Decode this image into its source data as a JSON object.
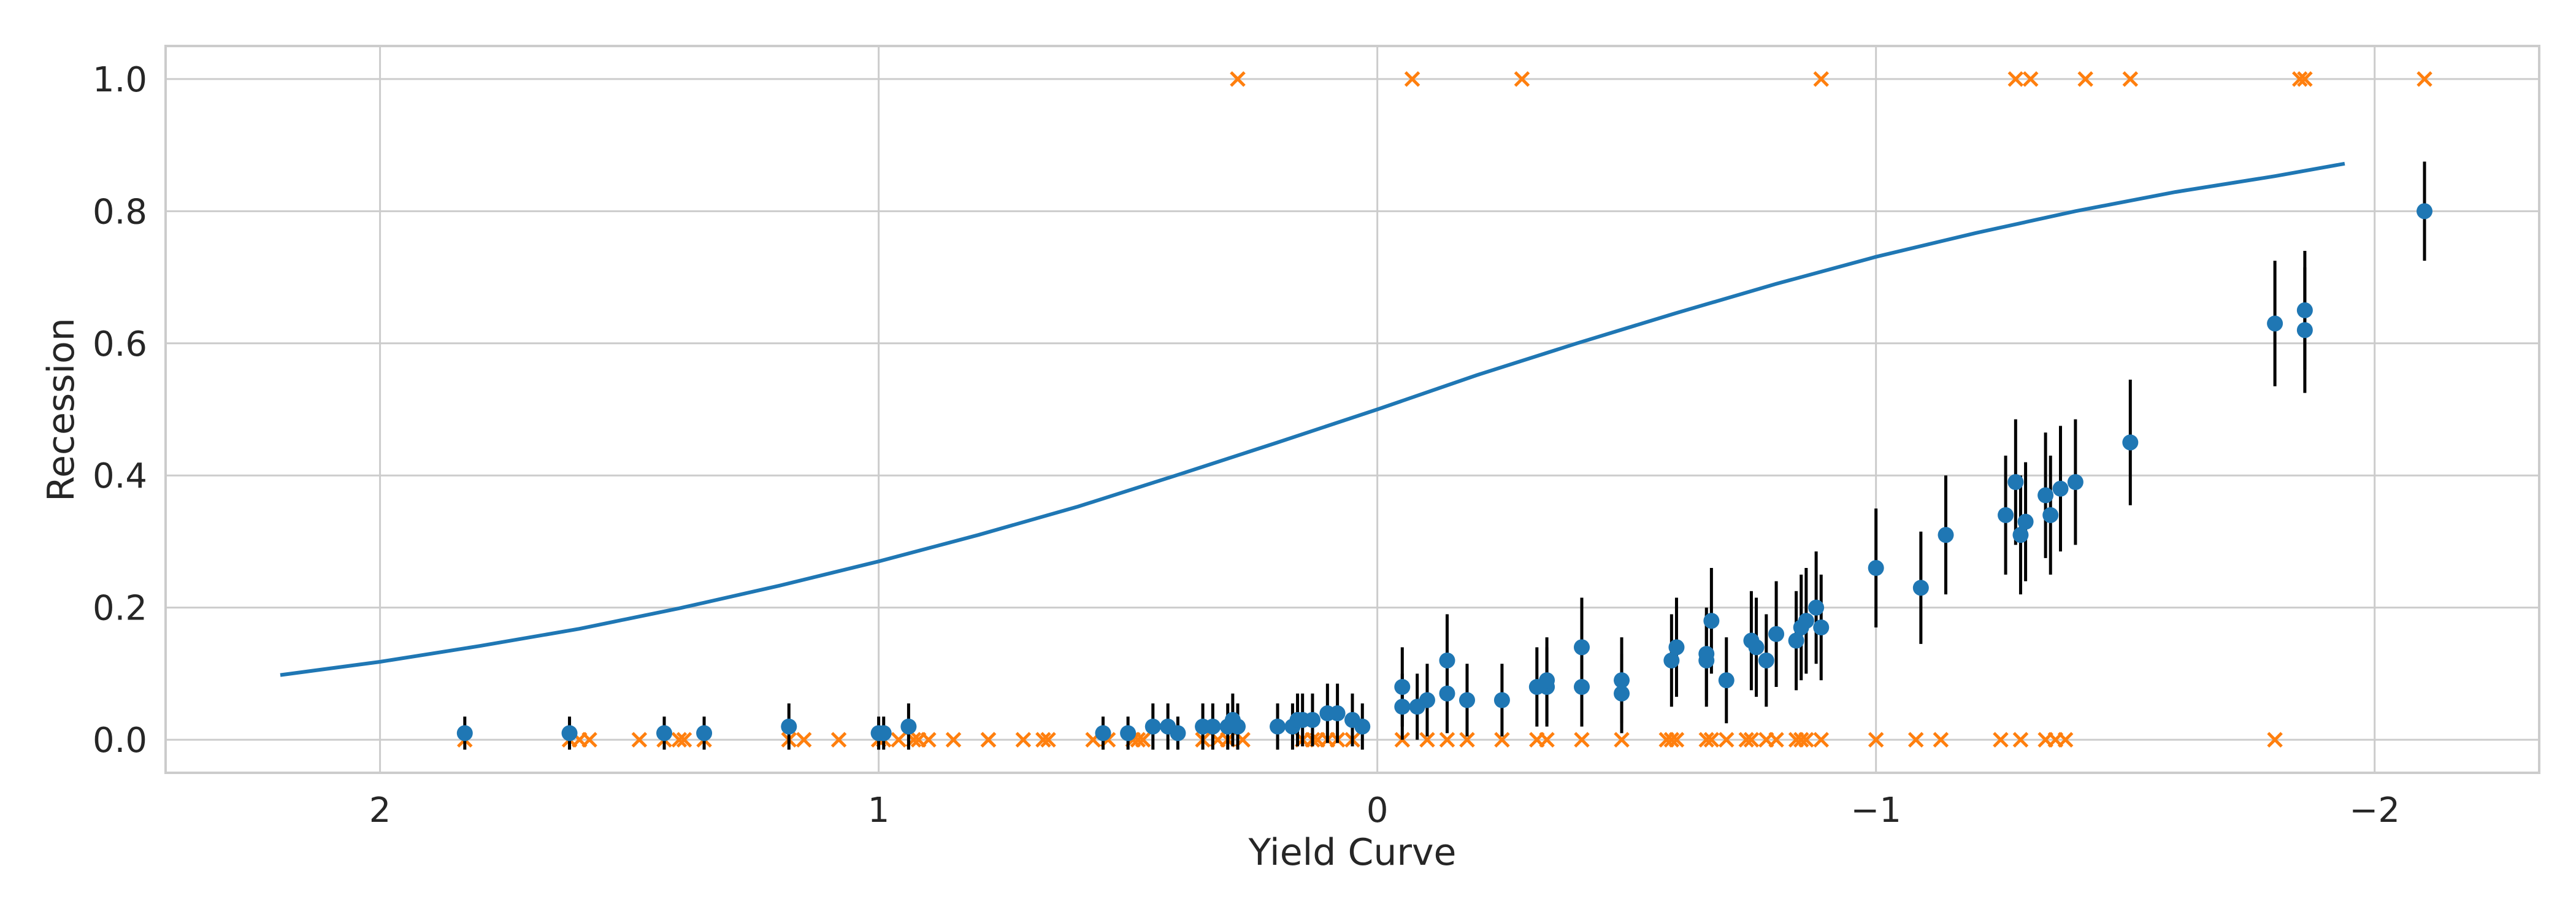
{
  "chart_data": {
    "type": "scatter",
    "title": "",
    "xlabel": "Yield Curve",
    "ylabel": "Recession",
    "xlim": [
      2.43,
      -2.33
    ],
    "ylim": [
      -0.05,
      1.05
    ],
    "x_ticks": [
      2,
      1,
      0,
      -1,
      -2
    ],
    "x_tick_labels": [
      "2",
      "1",
      "0",
      "−1",
      "−2"
    ],
    "y_ticks": [
      0.0,
      0.2,
      0.4,
      0.6,
      0.8,
      1.0
    ],
    "y_tick_labels": [
      "0.0",
      "0.2",
      "0.4",
      "0.6",
      "0.8",
      "1.0"
    ],
    "grid": true,
    "colors": {
      "curve": "#1f77b4",
      "points": "#1f77b4",
      "errorbars": "#000000",
      "observed": "#ff7f0e"
    },
    "series": [
      {
        "type": "line",
        "x": [
          2.2,
          2.0,
          1.8,
          1.6,
          1.4,
          1.2,
          1.0,
          0.8,
          0.6,
          0.4,
          0.2,
          0.0,
          -0.2,
          -0.4,
          -0.6,
          -0.8,
          -1.0,
          -1.2,
          -1.4,
          -1.6,
          -1.8,
          -1.94
        ],
        "y": [
          0.098,
          0.118,
          0.142,
          0.168,
          0.199,
          0.233,
          0.27,
          0.31,
          0.353,
          0.401,
          0.45,
          0.5,
          0.552,
          0.6,
          0.646,
          0.69,
          0.731,
          0.767,
          0.8,
          0.829,
          0.853,
          0.872
        ]
      },
      {
        "type": "scatter",
        "marker": "circle",
        "errorbars": true,
        "x": [
          1.83,
          1.62,
          1.43,
          1.35,
          1.18,
          1.0,
          0.99,
          0.94,
          0.55,
          0.5,
          0.45,
          0.42,
          0.4,
          0.35,
          0.33,
          0.3,
          0.29,
          0.28,
          0.2,
          0.17,
          0.16,
          0.15,
          0.13,
          0.1,
          0.08,
          0.05,
          0.03,
          -0.05,
          -0.05,
          -0.08,
          -0.1,
          -0.14,
          -0.14,
          -0.18,
          -0.25,
          -0.32,
          -0.34,
          -0.34,
          -0.41,
          -0.41,
          -0.49,
          -0.49,
          -0.59,
          -0.6,
          -0.66,
          -0.66,
          -0.67,
          -0.7,
          -0.75,
          -0.76,
          -0.78,
          -0.8,
          -0.84,
          -0.85,
          -0.86,
          -0.88,
          -0.89,
          -1.0,
          -1.09,
          -1.14,
          -1.26,
          -1.28,
          -1.29,
          -1.3,
          -1.34,
          -1.35,
          -1.37,
          -1.4,
          -1.51,
          -1.8,
          -1.86,
          -1.86,
          -2.1
        ],
        "y": [
          0.01,
          0.01,
          0.01,
          0.01,
          0.02,
          0.01,
          0.01,
          0.02,
          0.01,
          0.01,
          0.02,
          0.02,
          0.01,
          0.02,
          0.02,
          0.02,
          0.03,
          0.02,
          0.02,
          0.02,
          0.03,
          0.03,
          0.03,
          0.04,
          0.04,
          0.03,
          0.02,
          0.05,
          0.08,
          0.05,
          0.06,
          0.07,
          0.12,
          0.06,
          0.06,
          0.08,
          0.08,
          0.09,
          0.08,
          0.14,
          0.07,
          0.09,
          0.12,
          0.14,
          0.12,
          0.13,
          0.18,
          0.09,
          0.15,
          0.14,
          0.12,
          0.16,
          0.15,
          0.17,
          0.18,
          0.2,
          0.17,
          0.26,
          0.23,
          0.31,
          0.34,
          0.39,
          0.31,
          0.33,
          0.37,
          0.34,
          0.38,
          0.39,
          0.45,
          0.63,
          0.62,
          0.65,
          0.8
        ],
        "err": [
          0.025,
          0.025,
          0.025,
          0.025,
          0.035,
          0.025,
          0.025,
          0.035,
          0.025,
          0.025,
          0.035,
          0.035,
          0.025,
          0.035,
          0.035,
          0.035,
          0.04,
          0.035,
          0.035,
          0.035,
          0.04,
          0.04,
          0.04,
          0.045,
          0.045,
          0.04,
          0.035,
          0.05,
          0.06,
          0.05,
          0.055,
          0.06,
          0.07,
          0.055,
          0.055,
          0.06,
          0.06,
          0.065,
          0.06,
          0.075,
          0.06,
          0.065,
          0.07,
          0.075,
          0.07,
          0.07,
          0.08,
          0.065,
          0.075,
          0.075,
          0.07,
          0.08,
          0.075,
          0.08,
          0.08,
          0.085,
          0.08,
          0.09,
          0.085,
          0.09,
          0.09,
          0.095,
          0.09,
          0.09,
          0.095,
          0.09,
          0.095,
          0.095,
          0.095,
          0.095,
          0.095,
          0.09,
          0.075
        ]
      },
      {
        "type": "scatter",
        "marker": "x",
        "x": [
          1.83,
          1.62,
          1.6,
          1.58,
          1.48,
          1.43,
          1.4,
          1.39,
          1.35,
          1.18,
          1.15,
          1.08,
          1.0,
          0.99,
          0.96,
          0.93,
          0.92,
          0.9,
          0.85,
          0.78,
          0.78,
          0.71,
          0.67,
          0.66,
          0.57,
          0.54,
          0.49,
          0.48,
          0.47,
          0.35,
          0.32,
          0.3,
          0.27,
          0.15,
          0.13,
          0.12,
          0.1,
          0.08,
          0.05,
          -0.05,
          -0.1,
          -0.14,
          -0.18,
          -0.25,
          -0.32,
          -0.34,
          -0.41,
          -0.49,
          -0.58,
          -0.59,
          -0.6,
          -0.66,
          -0.67,
          -0.7,
          -0.74,
          -0.75,
          -0.78,
          -0.8,
          -0.84,
          -0.85,
          -0.86,
          -0.89,
          -1.0,
          -1.08,
          -1.13,
          -1.25,
          -1.29,
          -1.34,
          -1.36,
          -1.38,
          -1.8,
          -0.29,
          0.28,
          -0.07,
          -0.89,
          -1.28,
          -1.31,
          -1.42,
          -1.51,
          -1.85,
          -1.86,
          -2.1
        ],
        "y": [
          0,
          0,
          0,
          0,
          0,
          0,
          0,
          0,
          0,
          0,
          0,
          0,
          0,
          0,
          0,
          0,
          0,
          0,
          0,
          0,
          0,
          0,
          0,
          0,
          0,
          0,
          0,
          0,
          0,
          0,
          0,
          0,
          0,
          0,
          0,
          0,
          0,
          0,
          0,
          0,
          0,
          0,
          0,
          0,
          0,
          0,
          0,
          0,
          0,
          0,
          0,
          0,
          0,
          0,
          0,
          0,
          0,
          0,
          0,
          0,
          0,
          0,
          0,
          0,
          0,
          0,
          0,
          0,
          0,
          0,
          0,
          1,
          1,
          1,
          1,
          1,
          1,
          1,
          1,
          1,
          1,
          1
        ]
      }
    ]
  }
}
